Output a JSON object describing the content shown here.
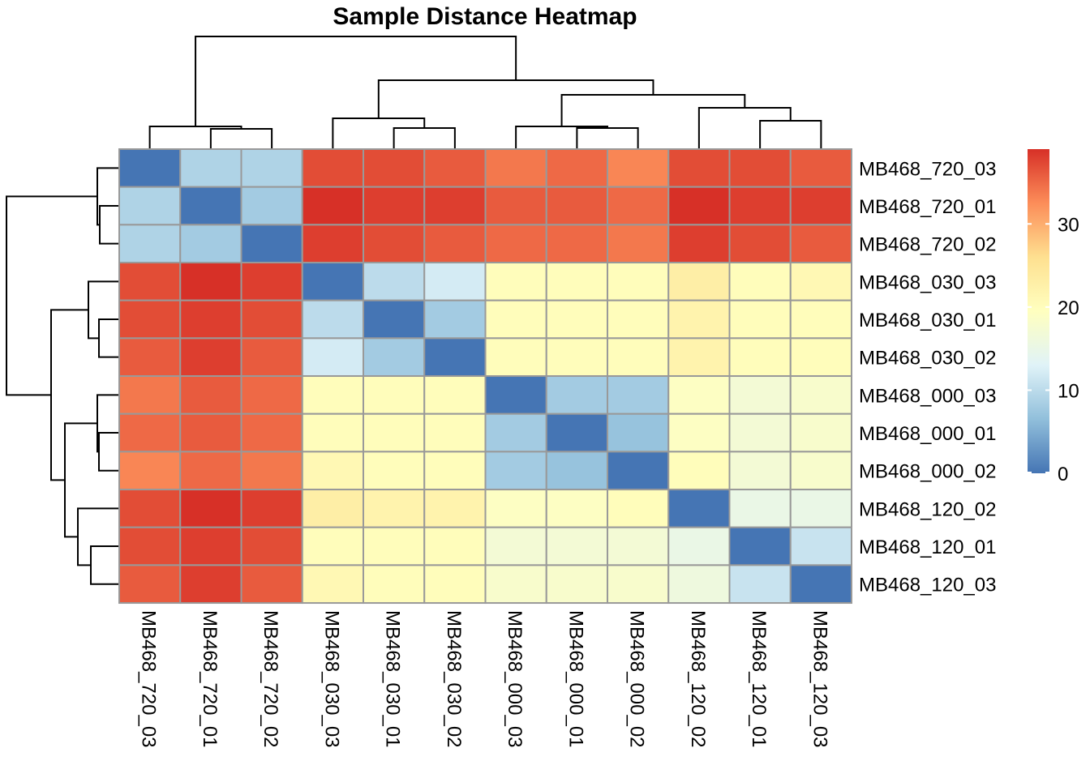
{
  "chart_data": {
    "type": "heatmap",
    "title": "Sample Distance Heatmap",
    "rows": [
      "MB468_720_03",
      "MB468_720_01",
      "MB468_720_02",
      "MB468_030_03",
      "MB468_030_01",
      "MB468_030_02",
      "MB468_000_03",
      "MB468_000_01",
      "MB468_000_02",
      "MB468_120_02",
      "MB468_120_01",
      "MB468_120_03"
    ],
    "columns": [
      "MB468_720_03",
      "MB468_720_01",
      "MB468_720_02",
      "MB468_030_03",
      "MB468_030_01",
      "MB468_030_02",
      "MB468_000_03",
      "MB468_000_01",
      "MB468_000_02",
      "MB468_120_02",
      "MB468_120_01",
      "MB468_120_03"
    ],
    "values": [
      [
        0,
        9,
        9,
        37,
        37,
        36,
        34,
        35,
        33,
        37,
        37,
        36
      ],
      [
        9,
        0,
        8,
        39,
        38,
        38,
        36,
        36,
        35,
        39,
        38,
        38
      ],
      [
        9,
        8,
        0,
        38,
        37,
        36,
        35,
        35,
        34,
        38,
        37,
        36
      ],
      [
        37,
        39,
        38,
        0,
        10,
        12,
        20,
        20,
        20,
        23,
        20,
        21
      ],
      [
        37,
        38,
        37,
        10,
        0,
        8,
        20,
        20,
        20,
        22,
        20,
        20
      ],
      [
        36,
        38,
        36,
        12,
        8,
        0,
        20,
        20,
        20,
        22,
        20,
        20
      ],
      [
        34,
        36,
        35,
        20,
        20,
        20,
        0,
        8,
        8,
        19,
        17,
        18
      ],
      [
        35,
        36,
        35,
        20,
        20,
        20,
        8,
        0,
        7,
        19,
        17,
        18
      ],
      [
        33,
        35,
        34,
        21,
        20,
        20,
        8,
        7,
        0,
        20,
        17,
        18
      ],
      [
        37,
        39,
        38,
        23,
        22,
        22,
        19,
        19,
        20,
        0,
        15,
        15
      ],
      [
        37,
        38,
        37,
        20,
        20,
        20,
        17,
        17,
        17,
        15,
        0,
        11
      ],
      [
        36,
        38,
        36,
        21,
        20,
        20,
        18,
        18,
        18,
        16,
        11,
        0
      ]
    ],
    "color_scale": {
      "range": [
        0,
        39
      ],
      "stops": [
        {
          "value": 0,
          "color": "#4575b4"
        },
        {
          "value": 6.5,
          "color": "#91bfdb"
        },
        {
          "value": 13,
          "color": "#e0f3f8"
        },
        {
          "value": 19.5,
          "color": "#ffffbf"
        },
        {
          "value": 26,
          "color": "#fee090"
        },
        {
          "value": 32.5,
          "color": "#fc8d59"
        },
        {
          "value": 39,
          "color": "#d73027"
        }
      ],
      "ticks": [
        0,
        10,
        20,
        30
      ],
      "tick_labels": [
        "0",
        "10",
        "20",
        "30"
      ]
    },
    "column_dendrogram": true,
    "row_dendrogram": true,
    "legend": "right"
  }
}
